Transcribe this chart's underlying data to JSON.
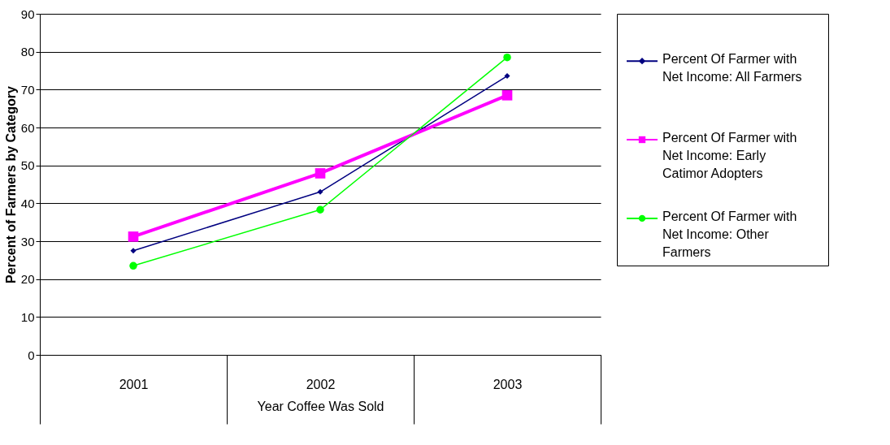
{
  "chart_data": {
    "type": "line",
    "xlabel": "Year Coffee Was Sold",
    "ylabel": "Percent of Farmers by Category",
    "categories": [
      "2001",
      "2002",
      "2003"
    ],
    "series": [
      {
        "name": "Percent Of Farmer with Net Income: All Farmers",
        "color": "#000080",
        "marker": "diamond",
        "values": [
          27.5,
          43.0,
          73.6
        ]
      },
      {
        "name": "Percent Of Farmer with Net Income: Early Catimor Adopters",
        "color": "#ff00ff",
        "marker": "square",
        "values": [
          31.2,
          47.9,
          68.5
        ]
      },
      {
        "name": "Percent Of Farmer with Net Income: Other Farmers",
        "color": "#00ff00",
        "marker": "circle",
        "values": [
          23.5,
          38.3,
          78.5
        ]
      }
    ],
    "ylim": [
      0,
      90
    ],
    "yticks": [
      0,
      10,
      20,
      30,
      40,
      50,
      60,
      70,
      80,
      90
    ],
    "grid": "y",
    "legend": "right"
  }
}
